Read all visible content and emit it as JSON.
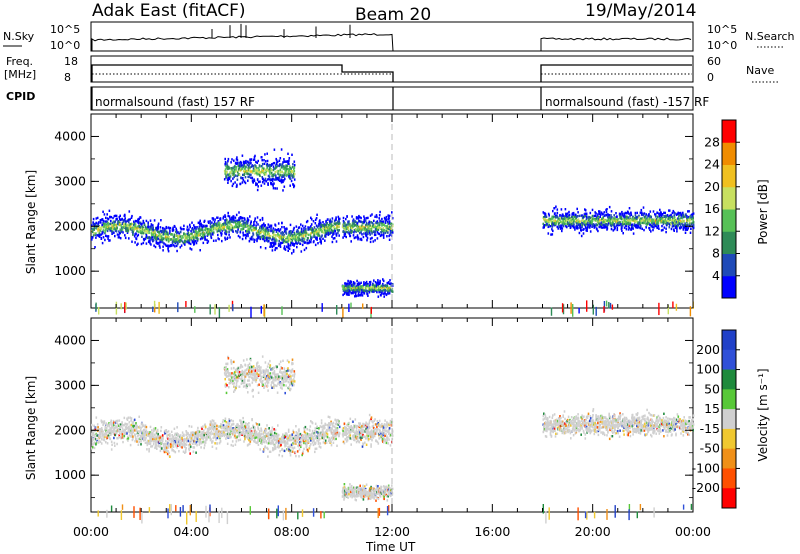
{
  "header": {
    "station": "Adak East (fitACF)",
    "beam": "Beam 20",
    "date": "19/May/2014"
  },
  "strips": {
    "nsky_label": "N.Sky",
    "nsky_ticks": [
      "10^5",
      "10^0"
    ],
    "nsearch_label": "N.Search",
    "nsearch_ticks": [
      "10^5",
      "10^0"
    ],
    "freq_label": "Freq.",
    "freq_unit": "[MHz]",
    "freq_ticks": [
      "18",
      "8"
    ],
    "nave_label": "Nave",
    "nave_ticks": [
      "60",
      "0"
    ],
    "cpid_label": "CPID",
    "cpid_text_1": "normalsound (fast) 157 RF",
    "cpid_text_2": "normalsound (fast) -157 RF"
  },
  "chart_data": [
    {
      "type": "heatmap",
      "quantity": "power",
      "ylabel": "Slant Range [km]",
      "xlabel": "Time UT",
      "x_tick_labels": [
        "00:00",
        "04:00",
        "08:00",
        "12:00",
        "16:00",
        "20:00",
        "00:00"
      ],
      "y_tick_labels": [
        "1000",
        "2000",
        "3000",
        "4000"
      ],
      "xlim_hours": [
        0,
        24
      ],
      "ylim_km": [
        180,
        4500
      ],
      "data_gap_hours": [
        12,
        18
      ],
      "colorbar": {
        "label": "Power [dB]",
        "ticks": [
          "4",
          "8",
          "12",
          "16",
          "20",
          "24",
          "28"
        ],
        "range": [
          0,
          30
        ],
        "colors": [
          "#0000ff",
          "#1f4ab8",
          "#2e8b57",
          "#57c157",
          "#c8e060",
          "#f0c020",
          "#f08c00",
          "#ff0000"
        ]
      },
      "scatter_bands": [
        {
          "t_start": 0.0,
          "t_end": 9.9,
          "range_center_km": 1900,
          "range_width_km": 380
        },
        {
          "t_start": 5.3,
          "t_end": 8.1,
          "range_center_km": 3250,
          "range_width_km": 450
        },
        {
          "t_start": 10.0,
          "t_end": 12.0,
          "range_center_km": 2000,
          "range_width_km": 380
        },
        {
          "t_start": 10.0,
          "t_end": 12.0,
          "range_center_km": 650,
          "range_width_km": 220
        },
        {
          "t_start": 18.0,
          "t_end": 24.0,
          "range_center_km": 2150,
          "range_width_km": 320
        }
      ]
    },
    {
      "type": "heatmap",
      "quantity": "velocity",
      "ylabel": "Slant Range [km]",
      "xlabel": "Time UT",
      "x_tick_labels": [
        "00:00",
        "04:00",
        "08:00",
        "12:00",
        "16:00",
        "20:00",
        "00:00"
      ],
      "y_tick_labels": [
        "1000",
        "2000",
        "3000",
        "4000"
      ],
      "xlim_hours": [
        0,
        24
      ],
      "ylim_km": [
        180,
        4500
      ],
      "data_gap_hours": [
        12,
        18
      ],
      "colorbar": {
        "label": "Velocity [m s⁻¹]",
        "ticks": [
          "200",
          "100",
          "50",
          "15",
          "-15",
          "-50",
          "-100",
          "-200"
        ],
        "range": [
          -250,
          250
        ],
        "colors": [
          "#2040c8",
          "#3050d8",
          "#1e8a3c",
          "#58c838",
          "#d0d0d0",
          "#f0c830",
          "#f09018",
          "#ff5000",
          "#ff0000"
        ]
      },
      "scatter_bands": [
        {
          "t_start": 0.0,
          "t_end": 9.9,
          "range_center_km": 1900,
          "range_width_km": 380
        },
        {
          "t_start": 5.3,
          "t_end": 8.1,
          "range_center_km": 3250,
          "range_width_km": 450
        },
        {
          "t_start": 10.0,
          "t_end": 12.0,
          "range_center_km": 2000,
          "range_width_km": 380
        },
        {
          "t_start": 10.0,
          "t_end": 12.0,
          "range_center_km": 650,
          "range_width_km": 220
        },
        {
          "t_start": 18.0,
          "t_end": 24.0,
          "range_center_km": 2150,
          "range_width_km": 320
        }
      ]
    }
  ]
}
